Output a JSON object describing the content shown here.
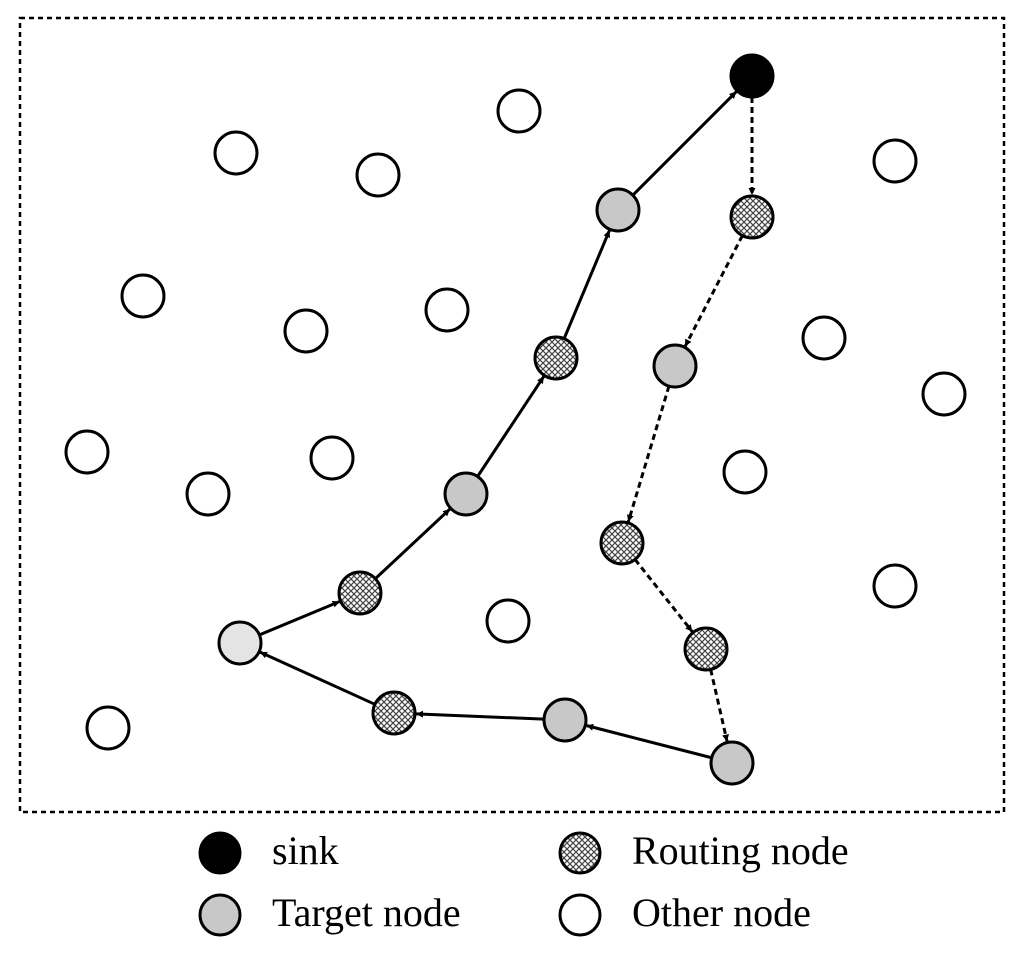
{
  "legend": {
    "items": [
      {
        "label": "sink"
      },
      {
        "label": "Routing node"
      },
      {
        "label": "Target node"
      },
      {
        "label": "Other node"
      }
    ]
  }
}
